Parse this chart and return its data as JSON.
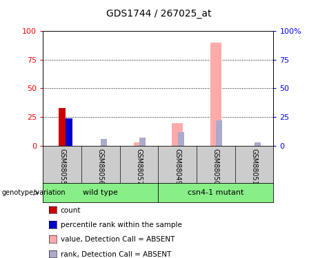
{
  "title": "GDS1744 / 267025_at",
  "samples": [
    "GSM88055",
    "GSM88056",
    "GSM88057",
    "GSM88049",
    "GSM88050",
    "GSM88051"
  ],
  "count_values": [
    33,
    0,
    0,
    0,
    0,
    0
  ],
  "percentile_values": [
    24,
    0,
    0,
    0,
    0,
    0
  ],
  "value_absent": [
    0,
    0,
    3,
    20,
    90,
    0
  ],
  "rank_absent": [
    0,
    6,
    7,
    12,
    22,
    3
  ],
  "ylim": [
    0,
    100
  ],
  "yticks": [
    0,
    25,
    50,
    75,
    100
  ],
  "right_ytick_labels": [
    "0",
    "25",
    "50",
    "75",
    "100%"
  ],
  "color_count": "#cc0000",
  "color_percentile": "#0000cc",
  "color_value_absent": "#ffaaaa",
  "color_rank_absent": "#aaaacc",
  "group_spans": [
    [
      0,
      2,
      "wild type"
    ],
    [
      3,
      5,
      "csn4-1 mutant"
    ]
  ],
  "group_box_color": "#88ee88",
  "sample_box_color": "#cccccc",
  "legend_items": [
    {
      "label": "count",
      "color": "#cc0000"
    },
    {
      "label": "percentile rank within the sample",
      "color": "#0000cc"
    },
    {
      "label": "value, Detection Call = ABSENT",
      "color": "#ffaaaa"
    },
    {
      "label": "rank, Detection Call = ABSENT",
      "color": "#aaaacc"
    }
  ]
}
